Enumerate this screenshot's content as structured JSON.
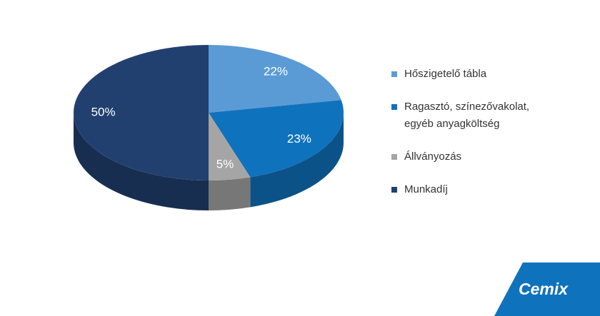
{
  "chart_data": {
    "type": "pie3d",
    "categories": [
      "Hőszigetelő tábla",
      "Ragasztó, színezővakolat, egyéb anyagköltség",
      "Állványozás",
      "Munkadíj"
    ],
    "values": [
      22,
      23,
      5,
      50
    ],
    "value_labels": [
      "22%",
      "23%",
      "5%",
      "50%"
    ],
    "colors": [
      "#5b9bd5",
      "#0f72bd",
      "#a5a5a5",
      "#22406f"
    ]
  },
  "logo": {
    "text": "Cemix"
  }
}
